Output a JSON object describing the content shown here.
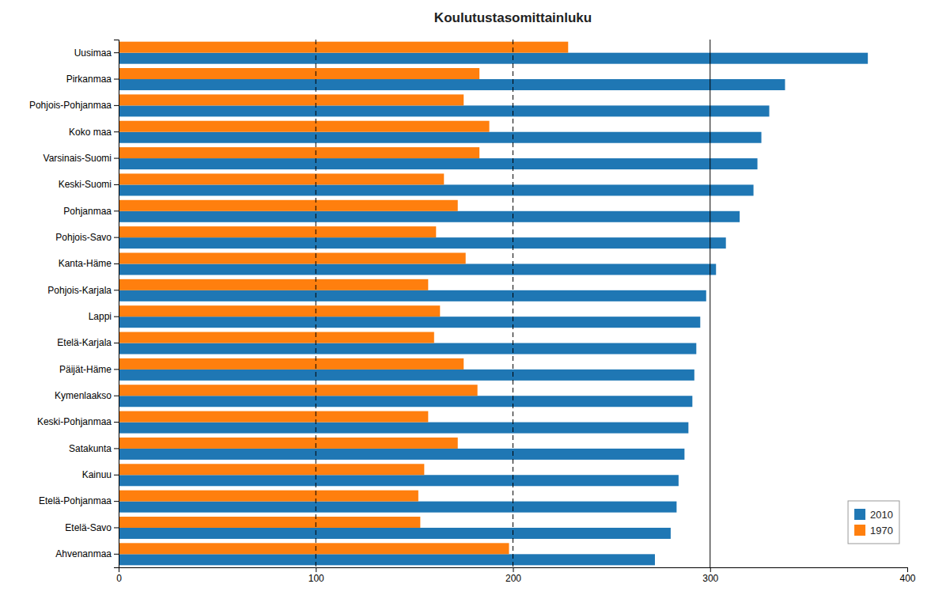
{
  "chart_data": {
    "type": "bar",
    "orientation": "horizontal",
    "title": "Koulutustasomittainluku",
    "categories": [
      "Uusimaa",
      "Pirkanmaa",
      "Pohjois-Pohjanmaa",
      "Koko maa",
      "Varsinais-Suomi",
      "Keski-Suomi",
      "Pohjanmaa",
      "Pohjois-Savo",
      "Kanta-Häme",
      "Pohjois-Karjala",
      "Lappi",
      "Etelä-Karjala",
      "Päijät-Häme",
      "Kymenlaakso",
      "Keski-Pohjanmaa",
      "Satakunta",
      "Kainuu",
      "Etelä-Pohjanmaa",
      "Etelä-Savo",
      "Ahvenanmaa"
    ],
    "series": [
      {
        "name": "2010",
        "values": [
          380,
          338,
          330,
          326,
          324,
          322,
          315,
          308,
          303,
          298,
          295,
          293,
          292,
          291,
          289,
          287,
          284,
          283,
          280,
          272
        ]
      },
      {
        "name": "1970",
        "values": [
          228,
          183,
          175,
          188,
          183,
          165,
          172,
          161,
          176,
          157,
          163,
          160,
          175,
          182,
          157,
          172,
          155,
          152,
          153,
          198
        ]
      }
    ],
    "xlim": [
      0,
      400
    ],
    "xticks": [
      0,
      100,
      200,
      300,
      400
    ],
    "vlines": [
      {
        "value": 100,
        "line_style": "dashed"
      },
      {
        "value": 200,
        "line_style": "dashed"
      },
      {
        "value": 300,
        "line_style": "solid"
      }
    ],
    "legend": "lower right",
    "grid": false
  }
}
